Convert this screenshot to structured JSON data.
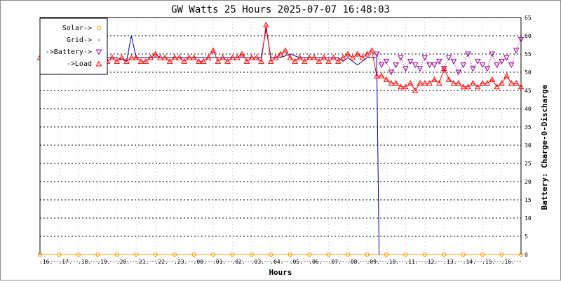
{
  "chart_data": {
    "type": "line",
    "title": "GW Watts 25 Hours 2025-07-07 16:48:03",
    "xlabel": "Hours",
    "ylabel": "Battery: Charge-0-Discharge",
    "ylim": [
      0,
      65
    ],
    "yticks": [
      0,
      5,
      10,
      15,
      20,
      25,
      30,
      35,
      40,
      45,
      50,
      55,
      60,
      65
    ],
    "grid": true,
    "legend_position": "top-left",
    "xlim": [
      0,
      100
    ],
    "xtick_labels": [
      ".16.",
      ".17.",
      ".18.",
      ".19.",
      ".20.",
      ".21.",
      ".22.",
      ".23.",
      ".00.",
      ".01.",
      ".02.",
      ".03.",
      ".04.",
      ".05.",
      ".06.",
      ".07.",
      ".08.",
      ".09.",
      ".10.",
      ".11.",
      ".12.",
      ".13.",
      ".14.",
      ".15.",
      ".16."
    ],
    "xtick_positions": [
      0,
      4,
      8,
      12,
      16,
      20,
      24,
      28,
      32,
      36,
      40,
      44,
      48,
      52,
      56,
      60,
      64,
      68,
      72,
      76,
      80,
      84,
      88,
      92,
      96
    ],
    "legend": [
      "Solar->",
      "Grid->",
      "->Battery->",
      "->Load"
    ],
    "series": [
      {
        "name": "Solar->",
        "color": "#ff9900",
        "marker": "circle",
        "x": [
          0,
          4,
          8,
          12,
          16,
          20,
          24,
          28,
          32,
          36,
          40,
          44,
          48,
          52,
          56,
          60,
          64,
          68,
          72,
          76,
          80,
          84,
          88,
          92,
          96,
          100
        ],
        "y": [
          0,
          0,
          0,
          0,
          0,
          0,
          0,
          0,
          0,
          0,
          0,
          0,
          0,
          0,
          0,
          0,
          0,
          0,
          0,
          0,
          0,
          0,
          0,
          0,
          0,
          0
        ]
      },
      {
        "name": "Grid->",
        "color": "#000099",
        "marker": "none",
        "x": [
          0,
          2,
          4,
          6,
          8,
          10,
          12,
          14,
          16,
          18,
          19,
          20,
          22,
          24,
          26,
          28,
          30,
          32,
          34,
          36,
          38,
          40,
          42,
          44,
          46,
          47,
          48,
          50,
          52,
          54,
          56,
          58,
          60,
          62,
          63,
          64,
          66,
          68,
          69,
          70,
          70.5
        ],
        "y": [
          54,
          54,
          54,
          54,
          54,
          54,
          54,
          54,
          54,
          53,
          60,
          54,
          54,
          54,
          54,
          54,
          54,
          54,
          54,
          54,
          54,
          54,
          54,
          54,
          54,
          62,
          54,
          54,
          55,
          54,
          54,
          54,
          54,
          54,
          53,
          54,
          52,
          54,
          54,
          54,
          0
        ]
      },
      {
        "name": "->Battery->",
        "color": "#990099",
        "marker": "triangle-down",
        "x": [
          70,
          71,
          72,
          73,
          74,
          75,
          76,
          77,
          78,
          79,
          80,
          81,
          82,
          83,
          84,
          85,
          86,
          87,
          88,
          89,
          90,
          91,
          92,
          93,
          94,
          95,
          96,
          97,
          98,
          99,
          100
        ],
        "y": [
          55,
          52,
          53,
          50,
          52,
          54,
          51,
          53,
          52,
          51,
          54,
          52,
          52,
          53,
          51,
          54,
          53,
          50,
          52,
          55,
          51,
          53,
          52,
          51,
          55,
          52,
          53,
          54,
          52,
          56,
          59
        ]
      },
      {
        "name": "->Load",
        "color": "#ff0000",
        "marker": "triangle-up",
        "x": [
          0,
          1,
          2,
          3,
          4,
          5,
          6,
          7,
          8,
          9,
          10,
          11,
          12,
          13,
          14,
          15,
          16,
          17,
          18,
          19,
          20,
          21,
          22,
          23,
          24,
          25,
          26,
          27,
          28,
          29,
          30,
          31,
          32,
          33,
          34,
          35,
          36,
          37,
          38,
          39,
          40,
          41,
          42,
          43,
          44,
          45,
          46,
          47,
          48,
          49,
          50,
          51,
          52,
          53,
          54,
          55,
          56,
          57,
          58,
          59,
          60,
          61,
          62,
          63,
          64,
          65,
          66,
          67,
          68,
          69,
          70,
          71,
          72,
          73,
          74,
          75,
          76,
          77,
          78,
          79,
          80,
          81,
          82,
          83,
          84,
          85,
          86,
          87,
          88,
          89,
          90,
          91,
          92,
          93,
          94,
          95,
          96,
          97,
          98,
          99,
          100
        ],
        "y": [
          54,
          53,
          54,
          53,
          55,
          53,
          54,
          54,
          53,
          55,
          54,
          53,
          54,
          54,
          53,
          54,
          53,
          54,
          53,
          54,
          54,
          53,
          53,
          54,
          55,
          54,
          54,
          53,
          54,
          54,
          53,
          54,
          54,
          53,
          53,
          54,
          56,
          53,
          54,
          53,
          54,
          54,
          55,
          53,
          54,
          54,
          53,
          63,
          53,
          54,
          55,
          56,
          54,
          53,
          54,
          53,
          54,
          54,
          53,
          54,
          53,
          54,
          53,
          54,
          55,
          54,
          55,
          54,
          55,
          56,
          49,
          49,
          48,
          47,
          47,
          46,
          46,
          47,
          45,
          47,
          47,
          47,
          48,
          47,
          51,
          48,
          47,
          47,
          46,
          46,
          47,
          46,
          47,
          47,
          48,
          46,
          47,
          49,
          47,
          47,
          46
        ]
      }
    ]
  }
}
